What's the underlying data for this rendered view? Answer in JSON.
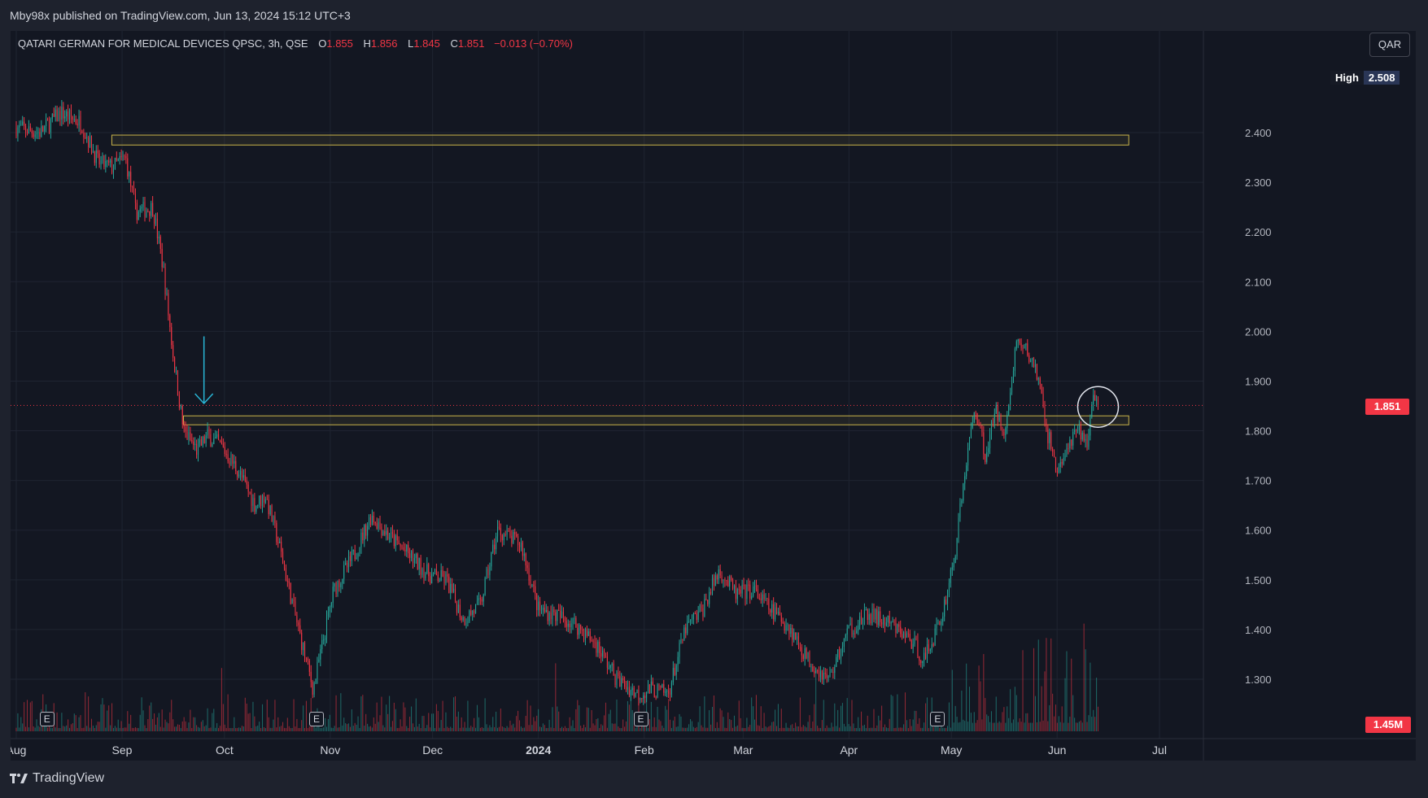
{
  "header": {
    "publisher": "Mby98x published on TradingView.com, Jun 13, 2024 15:12 UTC+3"
  },
  "legend": {
    "symbol": "QATARI GERMAN FOR MEDICAL DEVICES QPSC, 3h, QSE",
    "open_label": "O",
    "open": "1.855",
    "high_label": "H",
    "high": "1.856",
    "low_label": "L",
    "low": "1.845",
    "close_label": "C",
    "close": "1.851",
    "change": "−0.013 (−0.70%)"
  },
  "currency": "QAR",
  "high_marker": {
    "label": "High",
    "value": "2.508"
  },
  "last_price": "1.851",
  "last_volume": "1.45M",
  "earnings_marker": "E",
  "footer": {
    "brand": "TradingView"
  },
  "colors": {
    "up": "#26a69a",
    "down": "#f23645",
    "zone": "#c9b44a",
    "arrow": "#29b6d6",
    "background": "#131722",
    "grid": "#1f2431"
  },
  "chart_data": {
    "type": "candlestick",
    "ylim": [
      1.255,
      2.508
    ],
    "y_ticks": [
      "2.400",
      "2.300",
      "2.200",
      "2.100",
      "2.000",
      "1.900",
      "1.800",
      "1.700",
      "1.600",
      "1.500",
      "1.400",
      "1.300"
    ],
    "x_ticks": [
      "Aug",
      "Sep",
      "Oct",
      "Nov",
      "Dec",
      "2024",
      "Feb",
      "Mar",
      "Apr",
      "May",
      "Jun",
      "Jul"
    ],
    "price_path": [
      [
        "2023-08-01",
        2.41
      ],
      [
        "2023-08-08",
        2.4
      ],
      [
        "2023-08-14",
        2.44
      ],
      [
        "2023-08-20",
        2.42
      ],
      [
        "2023-08-25",
        2.34
      ],
      [
        "2023-08-29",
        2.33
      ],
      [
        "2023-09-02",
        2.35
      ],
      [
        "2023-09-05",
        2.24
      ],
      [
        "2023-09-10",
        2.25
      ],
      [
        "2023-09-13",
        2.13
      ],
      [
        "2023-09-16",
        1.95
      ],
      [
        "2023-09-19",
        1.8
      ],
      [
        "2023-09-23",
        1.76
      ],
      [
        "2023-09-26",
        1.79
      ],
      [
        "2023-09-30",
        1.77
      ],
      [
        "2023-10-05",
        1.72
      ],
      [
        "2023-10-10",
        1.65
      ],
      [
        "2023-10-13",
        1.67
      ],
      [
        "2023-10-17",
        1.57
      ],
      [
        "2023-10-22",
        1.42
      ],
      [
        "2023-10-27",
        1.28
      ],
      [
        "2023-11-02",
        1.48
      ],
      [
        "2023-11-08",
        1.55
      ],
      [
        "2023-11-13",
        1.63
      ],
      [
        "2023-11-18",
        1.59
      ],
      [
        "2023-11-24",
        1.55
      ],
      [
        "2023-11-30",
        1.51
      ],
      [
        "2023-12-05",
        1.5
      ],
      [
        "2023-12-10",
        1.42
      ],
      [
        "2023-12-15",
        1.45
      ],
      [
        "2023-12-20",
        1.6
      ],
      [
        "2023-12-27",
        1.57
      ],
      [
        "2024-01-01",
        1.44
      ],
      [
        "2024-01-06",
        1.43
      ],
      [
        "2024-01-12",
        1.41
      ],
      [
        "2024-01-18",
        1.37
      ],
      [
        "2024-01-24",
        1.3
      ],
      [
        "2024-01-30",
        1.27
      ],
      [
        "2024-02-03",
        1.28
      ],
      [
        "2024-02-08",
        1.27
      ],
      [
        "2024-02-13",
        1.4
      ],
      [
        "2024-02-18",
        1.44
      ],
      [
        "2024-02-23",
        1.52
      ],
      [
        "2024-02-28",
        1.47
      ],
      [
        "2024-03-04",
        1.48
      ],
      [
        "2024-03-09",
        1.44
      ],
      [
        "2024-03-14",
        1.41
      ],
      [
        "2024-03-20",
        1.34
      ],
      [
        "2024-03-26",
        1.3
      ],
      [
        "2024-04-01",
        1.4
      ],
      [
        "2024-04-07",
        1.43
      ],
      [
        "2024-04-13",
        1.41
      ],
      [
        "2024-04-19",
        1.38
      ],
      [
        "2024-04-23",
        1.34
      ],
      [
        "2024-04-28",
        1.42
      ],
      [
        "2024-05-02",
        1.55
      ],
      [
        "2024-05-05",
        1.72
      ],
      [
        "2024-05-08",
        1.85
      ],
      [
        "2024-05-11",
        1.75
      ],
      [
        "2024-05-14",
        1.84
      ],
      [
        "2024-05-17",
        1.8
      ],
      [
        "2024-05-20",
        1.98
      ],
      [
        "2024-05-23",
        1.96
      ],
      [
        "2024-05-26",
        1.92
      ],
      [
        "2024-05-29",
        1.8
      ],
      [
        "2024-06-01",
        1.72
      ],
      [
        "2024-06-04",
        1.76
      ],
      [
        "2024-06-07",
        1.8
      ],
      [
        "2024-06-10",
        1.78
      ],
      [
        "2024-06-12",
        1.88
      ],
      [
        "2024-06-13",
        1.851
      ]
    ],
    "zones": [
      {
        "from": "2023-08-29",
        "to": "2024-06-22",
        "top": 2.395,
        "bottom": 2.375
      },
      {
        "from": "2023-09-19",
        "to": "2024-06-22",
        "top": 1.83,
        "bottom": 1.812
      }
    ],
    "earnings_dates": [
      "2023-08-10",
      "2023-10-28",
      "2024-01-31",
      "2024-04-27"
    ],
    "annotations": [
      {
        "type": "arrow-down",
        "date": "2023-09-25",
        "from": 1.99,
        "to": 1.855
      },
      {
        "type": "circle",
        "date": "2024-06-13",
        "price": 1.848
      }
    ]
  }
}
